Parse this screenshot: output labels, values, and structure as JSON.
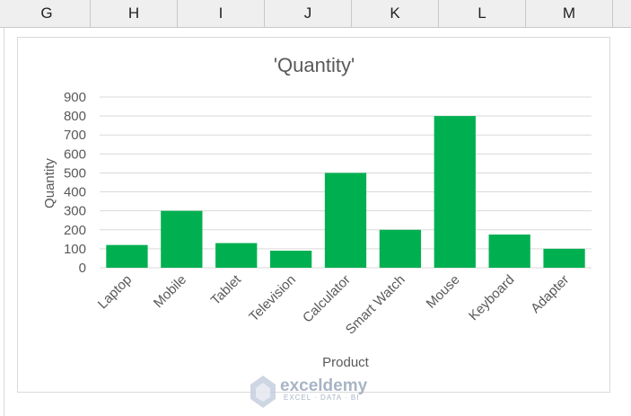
{
  "sheet": {
    "columns": [
      "G",
      "H",
      "I",
      "J",
      "K",
      "L",
      "M"
    ]
  },
  "watermark": {
    "name": "exceldemy",
    "tagline": "EXCEL · DATA · BI"
  },
  "colors": {
    "bar": "#00b050",
    "gridline": "#d9d9d9",
    "text": "#595959"
  },
  "chart_data": {
    "type": "bar",
    "title": "'Quantity'",
    "xlabel": "Product",
    "ylabel": "Quantity",
    "categories": [
      "Laptop",
      "Mobile",
      "Tablet",
      "Television",
      "Calculator",
      "Smart Watch",
      "Mouse",
      "Keyboard",
      "Adapter"
    ],
    "values": [
      120,
      300,
      130,
      90,
      500,
      200,
      800,
      175,
      100
    ],
    "ylim": [
      0,
      900
    ],
    "yticks": [
      0,
      100,
      200,
      300,
      400,
      500,
      600,
      700,
      800,
      900
    ],
    "grid": true,
    "legend": "none"
  }
}
